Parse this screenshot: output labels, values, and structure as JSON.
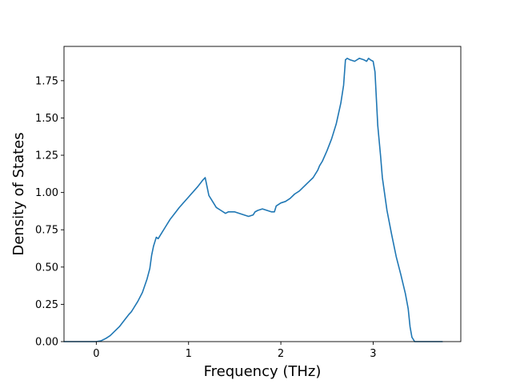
{
  "chart_data": {
    "type": "line",
    "title": "",
    "xlabel": "Frequency (THz)",
    "ylabel": "Density of States",
    "xlim": [
      -0.35,
      3.95
    ],
    "ylim": [
      0,
      1.98
    ],
    "xticks": [
      0,
      1,
      2,
      3
    ],
    "xtick_labels": [
      "0",
      "1",
      "2",
      "3"
    ],
    "yticks": [
      0,
      0.25,
      0.5,
      0.75,
      1.0,
      1.25,
      1.5,
      1.75
    ],
    "ytick_labels": [
      "0.00",
      "0.25",
      "0.50",
      "0.75",
      "1.00",
      "1.25",
      "1.50",
      "1.75"
    ],
    "grid": false,
    "line_color": "#1f77b4",
    "series": [
      {
        "x": [
          -0.35,
          -0.2,
          0.0,
          0.05,
          0.1,
          0.15,
          0.2,
          0.25,
          0.3,
          0.35,
          0.38,
          0.4,
          0.45,
          0.5,
          0.55,
          0.58,
          0.6,
          0.62,
          0.65,
          0.67,
          0.7,
          0.75,
          0.8,
          0.85,
          0.9,
          1.0,
          1.1,
          1.15,
          1.18,
          1.2,
          1.22,
          1.25,
          1.3,
          1.35,
          1.4,
          1.43,
          1.45,
          1.5,
          1.55,
          1.6,
          1.65,
          1.7,
          1.72,
          1.75,
          1.8,
          1.85,
          1.9,
          1.93,
          1.95,
          2.0,
          2.05,
          2.1,
          2.15,
          2.2,
          2.25,
          2.3,
          2.35,
          2.4,
          2.42,
          2.45,
          2.5,
          2.55,
          2.6,
          2.65,
          2.68,
          2.7,
          2.72,
          2.75,
          2.8,
          2.85,
          2.9,
          2.93,
          2.95,
          2.97,
          3.0,
          3.02,
          3.05,
          3.08,
          3.1,
          3.15,
          3.2,
          3.25,
          3.3,
          3.35,
          3.38,
          3.4,
          3.42,
          3.45,
          3.6,
          3.75
        ],
        "y": [
          0.0,
          0.0,
          0.0,
          0.005,
          0.02,
          0.04,
          0.07,
          0.1,
          0.14,
          0.18,
          0.2,
          0.22,
          0.27,
          0.33,
          0.42,
          0.49,
          0.58,
          0.64,
          0.7,
          0.69,
          0.72,
          0.77,
          0.82,
          0.86,
          0.9,
          0.97,
          1.04,
          1.08,
          1.1,
          1.04,
          0.98,
          0.95,
          0.9,
          0.88,
          0.86,
          0.87,
          0.87,
          0.87,
          0.86,
          0.85,
          0.84,
          0.85,
          0.87,
          0.88,
          0.89,
          0.88,
          0.87,
          0.87,
          0.91,
          0.93,
          0.94,
          0.96,
          0.99,
          1.01,
          1.04,
          1.07,
          1.1,
          1.15,
          1.18,
          1.21,
          1.28,
          1.36,
          1.46,
          1.6,
          1.72,
          1.89,
          1.9,
          1.89,
          1.88,
          1.9,
          1.89,
          1.88,
          1.9,
          1.89,
          1.88,
          1.81,
          1.45,
          1.25,
          1.1,
          0.88,
          0.72,
          0.57,
          0.45,
          0.32,
          0.22,
          0.1,
          0.03,
          0.0,
          0.0,
          0.0
        ]
      }
    ]
  }
}
